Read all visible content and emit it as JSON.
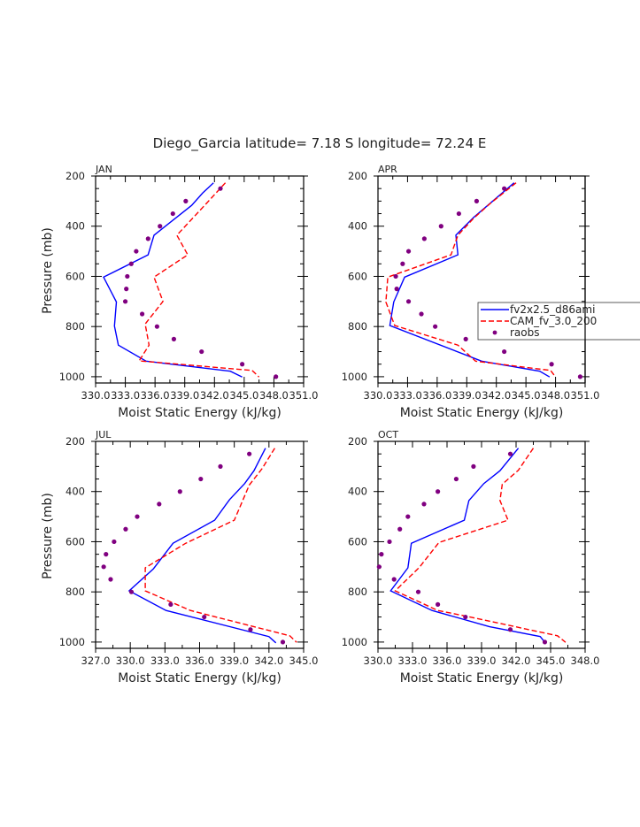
{
  "chart_data": {
    "type": "line",
    "title": "Diego_Garcia  latitude= 7.18 S longitude= 72.24 E",
    "legend": {
      "placement": "right-middle (inside APR panel, clipped)",
      "entries": [
        {
          "name": "fv2x2.5_d86ami",
          "style": "solid",
          "color": "#0000ff"
        },
        {
          "name": "CAM_fv_3.0_200",
          "style": "dashed",
          "color": "#ff0000"
        },
        {
          "name": "raobs",
          "style": "marker",
          "color": "#800080"
        }
      ]
    },
    "panels": [
      {
        "label": "JAN",
        "xlabel": "Moist Static Energy (kJ/kg)",
        "ylabel": "Pressure (mb)",
        "xlim": [
          330,
          351
        ],
        "ylim": [
          200,
          1025
        ],
        "xticks": [
          "330.0",
          "333.0",
          "336.0",
          "339.0",
          "342.0",
          "345.0",
          "348.0",
          "351.0"
        ],
        "yticks": [
          "200",
          "400",
          "600",
          "800",
          "1000"
        ],
        "series": [
          {
            "name": "fv2x2.5_d86ami",
            "x": [
              341.9,
              340.8,
              339.7,
              335.9,
              335.3,
              330.8,
              332.1,
              331.9,
              332.3,
              335.1,
              343.6,
              344.8
            ],
            "p": [
              227,
              268,
              317,
              436,
              514,
              603,
              702,
              798,
              874,
              938,
              978,
              1001
            ]
          },
          {
            "name": "CAM_fv_3.0_200",
            "x": [
              343.1,
              341.2,
              338.2,
              339.3,
              335.9,
              336.8,
              335.0,
              335.4,
              334.4,
              345.8,
              346.5
            ],
            "p": [
              227,
              309,
              436,
              514,
              603,
              700,
              790,
              874,
              937,
              975,
              1001
            ]
          },
          {
            "name": "raobs",
            "x": [
              342.6,
              339.1,
              337.8,
              336.5,
              335.3,
              334.1,
              333.6,
              333.2,
              333.1,
              333.0,
              334.7,
              336.2,
              337.9,
              340.7,
              344.8,
              348.2
            ],
            "p": [
              250,
              300,
              350,
              400,
              450,
              500,
              550,
              600,
              650,
              700,
              750,
              800,
              850,
              900,
              950,
              1000
            ]
          }
        ]
      },
      {
        "label": "APR",
        "xlabel": "Moist Static Energy (kJ/kg)",
        "ylabel": "",
        "xlim": [
          330,
          351
        ],
        "ylim": [
          200,
          1025
        ],
        "xticks": [
          "330.0",
          "333.0",
          "336.0",
          "339.0",
          "342.0",
          "345.0",
          "348.0",
          "351.0"
        ],
        "yticks": [
          "200",
          "400",
          "600",
          "800",
          "1000"
        ],
        "series": [
          {
            "name": "fv2x2.5_d86ami",
            "x": [
              343.8,
              339.7,
              337.9,
              338.1,
              332.7,
              331.6,
              331.2,
              340.5,
              346.4,
              347.4
            ],
            "p": [
              227,
              365,
              436,
              514,
              603,
              702,
              796,
              938,
              978,
              1001
            ]
          },
          {
            "name": "CAM_fv_3.0_200",
            "x": [
              344.0,
              341.4,
              339.7,
              338.1,
              337.4,
              331.0,
              330.8,
              331.7,
              338.1,
              339.9,
              347.5,
              348.0
            ],
            "p": [
              227,
              309,
              368,
              436,
              514,
              603,
              702,
              796,
              874,
              938,
              975,
              1001
            ]
          },
          {
            "name": "raobs",
            "x": [
              342.8,
              340.0,
              338.2,
              336.4,
              334.7,
              333.1,
              332.5,
              331.8,
              331.9,
              333.1,
              334.4,
              335.8,
              338.9,
              342.8,
              347.6,
              350.5
            ],
            "p": [
              250,
              300,
              350,
              400,
              450,
              500,
              550,
              600,
              650,
              700,
              750,
              800,
              850,
              900,
              950,
              1000
            ]
          }
        ]
      },
      {
        "label": "JUL",
        "xlabel": "Moist Static Energy (kJ/kg)",
        "ylabel": "Pressure (mb)",
        "xlim": [
          327,
          345
        ],
        "ylim": [
          200,
          1025
        ],
        "xticks": [
          "327.0",
          "330.0",
          "333.0",
          "336.0",
          "339.0",
          "342.0",
          "345.0"
        ],
        "yticks": [
          "200",
          "400",
          "600",
          "800",
          "1000"
        ],
        "series": [
          {
            "name": "fv2x2.5_d86ami",
            "x": [
              341.7,
              340.7,
              339.9,
              338.6,
              337.3,
              333.7,
              332.0,
              329.9,
              333.1,
              342.0,
              342.6
            ],
            "p": [
              227,
              317,
              368,
              432,
              514,
              606,
              708,
              796,
              874,
              978,
              1003
            ]
          },
          {
            "name": "CAM_fv_3.0_200",
            "x": [
              342.5,
              341.4,
              340.3,
              339.0,
              334.8,
              331.3,
              331.3,
              335.2,
              343.8,
              344.4
            ],
            "p": [
              227,
              309,
              374,
              514,
              606,
              704,
              796,
              874,
              975,
              1001
            ]
          },
          {
            "name": "raobs",
            "x": [
              340.3,
              337.8,
              336.1,
              334.3,
              332.5,
              330.6,
              329.6,
              328.6,
              327.9,
              327.7,
              328.3,
              330.1,
              333.5,
              336.4,
              340.4,
              343.2
            ],
            "p": [
              250,
              300,
              350,
              400,
              450,
              500,
              550,
              600,
              650,
              700,
              750,
              800,
              850,
              900,
              950,
              1000
            ]
          }
        ]
      },
      {
        "label": "OCT",
        "xlabel": "Moist Static Energy (kJ/kg)",
        "ylabel": "",
        "xlim": [
          330,
          348
        ],
        "ylim": [
          200,
          1025
        ],
        "xticks": [
          "330.0",
          "333.0",
          "336.0",
          "339.0",
          "342.0",
          "345.0",
          "348.0"
        ],
        "yticks": [
          "200",
          "400",
          "600",
          "800",
          "1000"
        ],
        "series": [
          {
            "name": "fv2x2.5_d86ami",
            "x": [
              342.2,
              340.6,
              339.2,
              337.9,
              337.5,
              332.9,
              332.6,
              331.1,
              334.7,
              339.7,
              344.1,
              344.5
            ],
            "p": [
              227,
              317,
              368,
              436,
              514,
              606,
              704,
              796,
              874,
              939,
              978,
              1001
            ]
          },
          {
            "name": "CAM_fv_3.0_200",
            "x": [
              343.5,
              342.2,
              340.8,
              340.6,
              341.3,
              335.3,
              333.6,
              331.5,
              335.2,
              337.8,
              345.6,
              346.3
            ],
            "p": [
              227,
              315,
              371,
              436,
              514,
              603,
              702,
              796,
              874,
              898,
              975,
              1001
            ]
          },
          {
            "name": "raobs",
            "x": [
              341.5,
              338.3,
              336.8,
              335.2,
              334.0,
              332.6,
              331.9,
              331.0,
              330.3,
              330.1,
              331.4,
              333.5,
              335.2,
              337.6,
              341.5,
              344.5
            ],
            "p": [
              250,
              300,
              350,
              400,
              450,
              500,
              550,
              600,
              650,
              700,
              750,
              800,
              850,
              900,
              950,
              1000
            ]
          }
        ]
      }
    ]
  }
}
